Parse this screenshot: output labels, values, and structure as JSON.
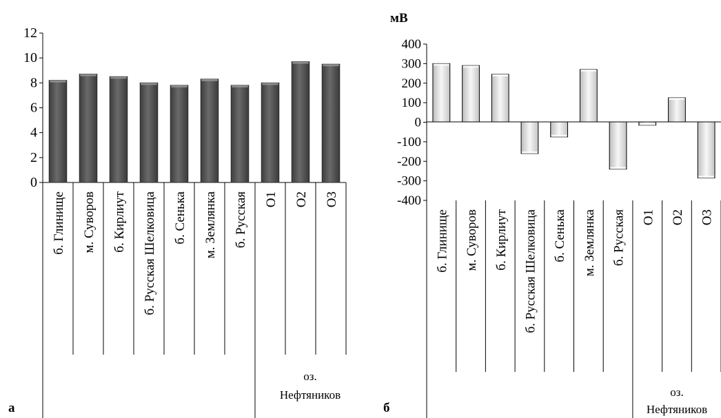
{
  "figure": {
    "panel_labels": [
      "а",
      "б"
    ],
    "group_label_line1": "оз.",
    "group_label_line2": "Нефтяников"
  },
  "colors": {
    "bar_dark_fill": "#5f5f5f",
    "bar_dark_top": "#8a8a8a",
    "bar_light_fill": "#e8e8e8",
    "bar_light_edge": "#000000",
    "axis": "#000000"
  },
  "chart_data": [
    {
      "type": "bar",
      "categories": [
        "б. Глинище",
        "м. Суворов",
        "б. Кирлиут",
        "б. Русская Шелковица",
        "б. Сенька",
        "м. Землянка",
        "б. Русская",
        "О1",
        "О2",
        "О3"
      ],
      "values": [
        8.2,
        8.7,
        8.5,
        8.0,
        7.8,
        8.3,
        7.8,
        8.0,
        9.7,
        9.5
      ],
      "ylim": [
        0,
        12
      ],
      "yticks": [
        0,
        2,
        4,
        6,
        8,
        10,
        12
      ],
      "ylabel": "",
      "xlabel": "",
      "title": "",
      "grid": false,
      "panel": "а"
    },
    {
      "type": "bar",
      "categories": [
        "б. Глинище",
        "м. Суворов",
        "б. Кирлиут",
        "б. Русская Шелковица",
        "б. Сенька",
        "м. Землянка",
        "б. Русская",
        "О1",
        "О2",
        "О3"
      ],
      "values": [
        300,
        290,
        245,
        -160,
        -75,
        270,
        -240,
        -15,
        125,
        -285
      ],
      "ylim": [
        -400,
        400
      ],
      "yticks": [
        -400,
        -300,
        -200,
        -100,
        0,
        100,
        200,
        300,
        400
      ],
      "ylabel": "мВ",
      "xlabel": "",
      "title": "",
      "grid": false,
      "panel": "б"
    }
  ]
}
